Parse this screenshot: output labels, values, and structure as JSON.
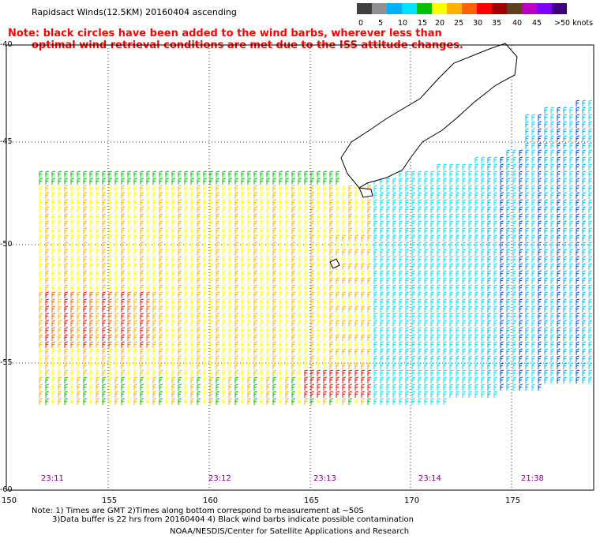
{
  "title": "Rapidsact Winds(12.5KM) 20160404 ascending",
  "note_line1": "Note: black circles have been added to the wind barbs, wherever less than",
  "note_line2": "optimal wind retrieval conditions are met due to the ISS attitude changes.",
  "legend": {
    "colors": [
      "#404040",
      "#909090",
      "#00b0ff",
      "#00e0ff",
      "#00c000",
      "#ffff00",
      "#ffb000",
      "#ff6000",
      "#ff0000",
      "#a00000",
      "#604020",
      "#c000c0",
      "#8000ff",
      "#400080"
    ],
    "labels": [
      "0",
      "5",
      "10",
      "15",
      "20",
      "25",
      "30",
      "35",
      "40",
      "45",
      ">50 knots"
    ]
  },
  "axes": {
    "lat_labels": [
      "-40",
      "-45",
      "-50",
      "-55",
      "-60"
    ],
    "lon_labels": [
      "150",
      "155",
      "160",
      "165",
      "170",
      "175"
    ]
  },
  "pass_times": [
    "23:11",
    "23:12",
    "23:13",
    "23:14",
    "21:38"
  ],
  "footer": {
    "line1": "Note: 1) Times are GMT 2)Times along bottom correspond to measurement at ~50S",
    "line2": "3)Data buffer is 22 hrs from 20160404 4) Black wind barbs indicate possible contamination",
    "line3": "NOAA/NESDIS/Center for Satellite Applications and Research"
  }
}
